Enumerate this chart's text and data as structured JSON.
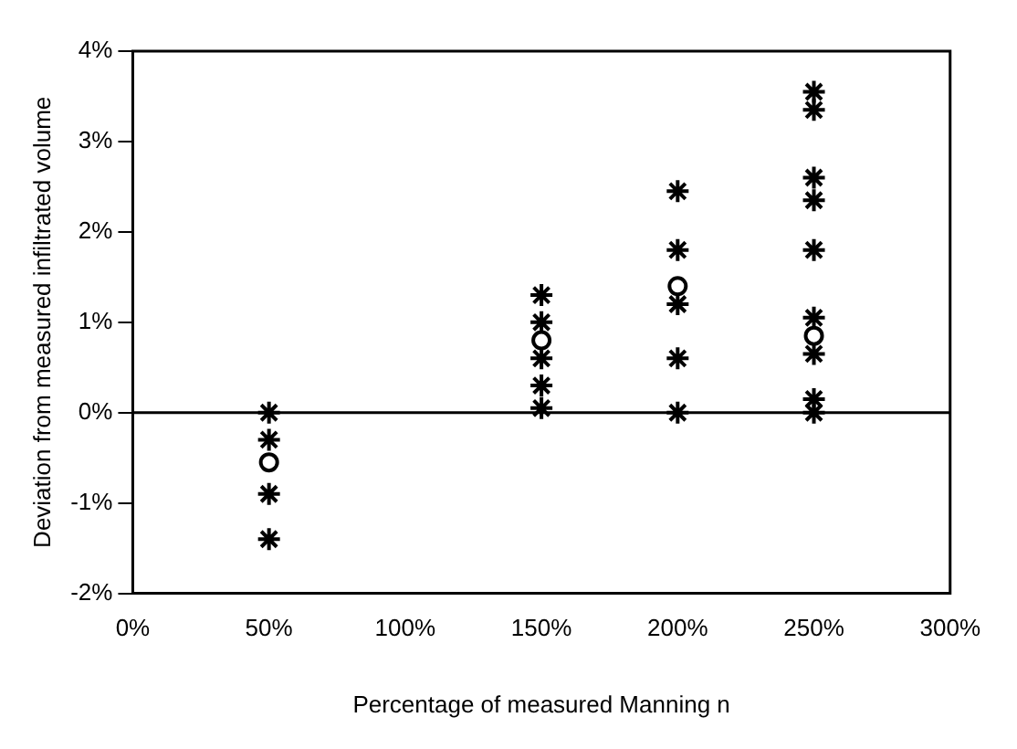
{
  "chart_data": {
    "type": "scatter",
    "xlabel": "Percentage of measured Manning n",
    "ylabel": "Deviation from measured infiltrated volume",
    "series": [
      {
        "color": "#000000",
        "marker": "cross",
        "x": [
          50,
          50,
          50,
          50,
          150,
          150,
          150,
          150,
          150,
          200,
          200,
          200,
          200,
          200,
          250,
          250,
          250,
          250,
          250,
          250,
          250,
          250,
          250
        ],
        "values": [
          0,
          -0.3,
          -0.9,
          -1.4,
          1.3,
          1.0,
          0.6,
          0.3,
          0.05,
          2.45,
          1.8,
          1.2,
          0.6,
          0,
          3.55,
          3.35,
          2.6,
          2.35,
          1.8,
          1.05,
          0.65,
          0.15,
          0
        ]
      },
      {
        "color": "#000000",
        "marker": "circle",
        "x": [
          50,
          150,
          200,
          250
        ],
        "values": [
          -0.55,
          0.8,
          1.4,
          0.85
        ]
      }
    ],
    "xlim": [
      0,
      300
    ],
    "xticks": [
      {
        "value": 0,
        "label": "0%"
      },
      {
        "value": 50,
        "label": "50%"
      },
      {
        "value": 100,
        "label": "100%"
      },
      {
        "value": 150,
        "label": "150%"
      },
      {
        "value": 200,
        "label": "200%"
      },
      {
        "value": 250,
        "label": "250%"
      },
      {
        "value": 300,
        "label": "300%"
      }
    ],
    "ylim": [
      -2,
      4
    ],
    "yticks": [
      {
        "value": -2,
        "label": "-2%"
      },
      {
        "value": -1,
        "label": "-1%"
      },
      {
        "value": 0,
        "label": "0%"
      },
      {
        "value": 1,
        "label": "1%"
      },
      {
        "value": 2,
        "label": "2%"
      },
      {
        "value": 3,
        "label": "3%"
      },
      {
        "value": 4,
        "label": "4%"
      }
    ],
    "ref_lines": [
      {
        "axis": "y",
        "value": 0,
        "color": "#000000"
      }
    ],
    "grid": false,
    "legend": false
  }
}
